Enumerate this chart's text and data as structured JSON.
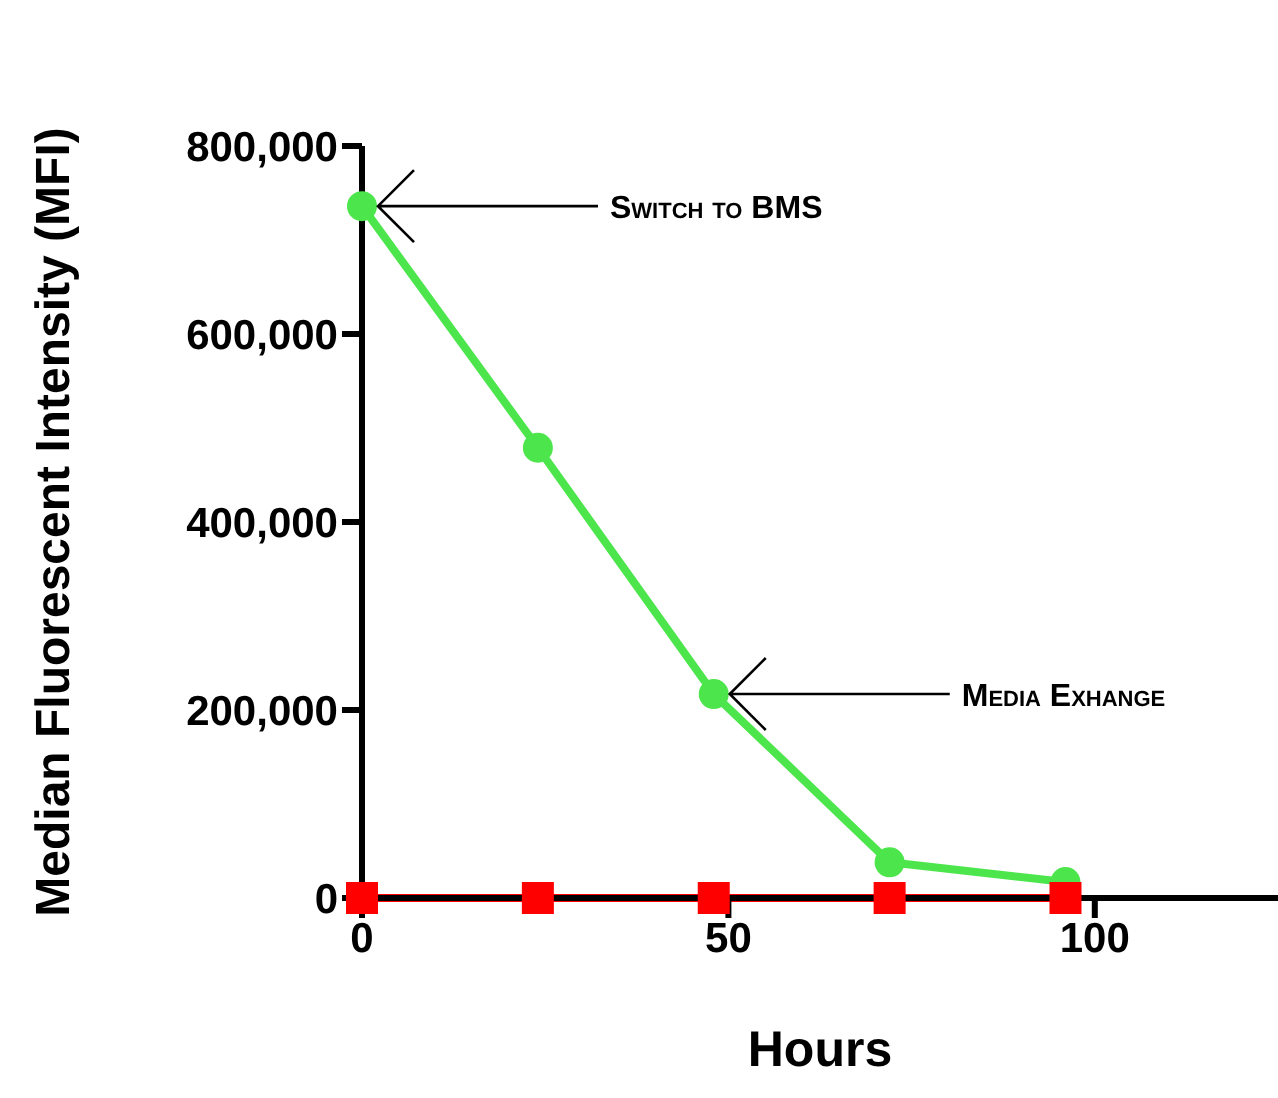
{
  "chart_data": {
    "type": "line",
    "xlabel": "Hours",
    "ylabel": "Median Fluorescent Intensity (MFI)",
    "x": [
      0,
      24,
      48,
      72,
      96
    ],
    "series": [
      {
        "color": "#4ce64c",
        "marker": "circle",
        "values": [
          736000,
          479000,
          217000,
          38000,
          17000
        ]
      },
      {
        "color": "#ff0000",
        "marker": "square",
        "values": [
          0,
          0,
          0,
          0,
          0
        ]
      }
    ],
    "xlim": [
      0,
      125
    ],
    "xticks": [
      0,
      50,
      100
    ],
    "ylim": [
      0,
      800000
    ],
    "yticks": [
      0,
      {
        "value": 200000,
        "label": "200,000"
      },
      {
        "value": 400000,
        "label": "400,000"
      },
      {
        "value": 600000,
        "label": "600,000"
      },
      {
        "value": 800000,
        "label": "800,000"
      }
    ],
    "annotations": [
      {
        "text": "Switch to BMS",
        "x": 0,
        "y": 736000
      },
      {
        "text": "Media Exhange",
        "x": 48,
        "y": 217000
      }
    ],
    "grid": false
  }
}
